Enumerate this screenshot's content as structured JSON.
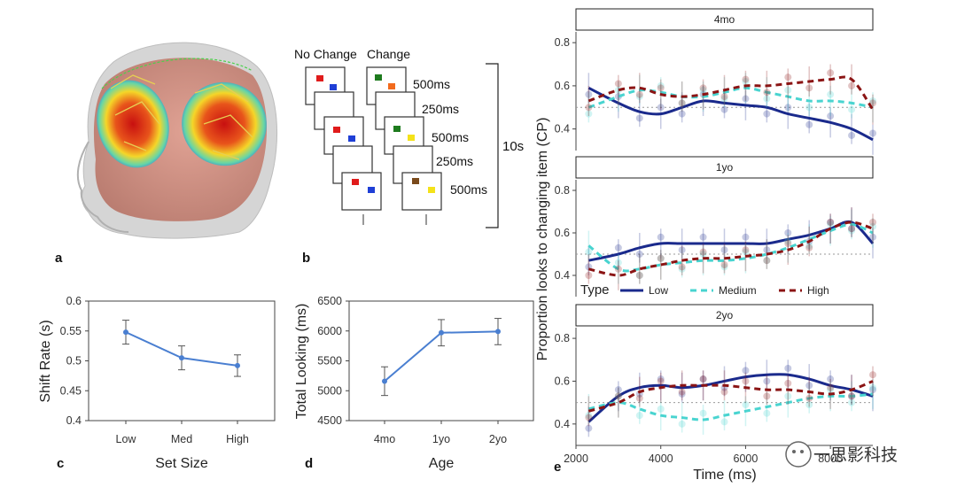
{
  "panels": {
    "a": {
      "label": "a"
    },
    "b": {
      "label": "b",
      "header_no_change": "No Change",
      "header_change": "Change",
      "timings": [
        "500ms",
        "250ms",
        "500ms",
        "250ms",
        "500ms"
      ],
      "total": "10s",
      "colors": {
        "red": "#e01b1b",
        "blue": "#1f3fd6",
        "green": "#1e7b1e",
        "orange": "#f26b1d",
        "yellow": "#f4e21a",
        "brown": "#7a4a1c"
      }
    },
    "c": {
      "label": "c"
    },
    "d": {
      "label": "d"
    },
    "e": {
      "label": "e"
    }
  },
  "chart_data": [
    {
      "id": "c",
      "type": "line",
      "categories": [
        "Low",
        "Med",
        "High"
      ],
      "values": [
        0.548,
        0.505,
        0.492
      ],
      "errors": [
        0.02,
        0.02,
        0.018
      ],
      "xlabel": "Set Size",
      "ylabel": "Shift Rate (s)",
      "ylim": [
        0.4,
        0.6
      ],
      "yticks": [
        "0.6",
        "0.55",
        "0.5",
        "0.45",
        "0.4"
      ],
      "color": "#4a7fd1"
    },
    {
      "id": "d",
      "type": "line",
      "categories": [
        "4mo",
        "1yo",
        "2yo"
      ],
      "values": [
        5160,
        5970,
        5990
      ],
      "errors": [
        240,
        220,
        220
      ],
      "xlabel": "Age",
      "ylabel": "Total Looking (ms)",
      "ylim": [
        4500,
        6500
      ],
      "yticks": [
        "6500",
        "6000",
        "5500",
        "5000",
        "4500"
      ],
      "color": "#4a7fd1"
    },
    {
      "id": "e",
      "type": "line",
      "ylabel": "Proportion looks to changing item (CP)",
      "xlabel": "Time (ms)",
      "xticks": [
        "2000",
        "4000",
        "6000",
        "8000"
      ],
      "xlim": [
        2000,
        9000
      ],
      "ylim": [
        0.3,
        0.85
      ],
      "yticks": [
        "0.8",
        "0.6",
        "0.4"
      ],
      "reference_line": 0.5,
      "legend_title": "Type",
      "legend": [
        {
          "name": "Low",
          "color": "#1a2a8c",
          "dash": "solid"
        },
        {
          "name": "Medium",
          "color": "#49d4d0",
          "dash": "dashed"
        },
        {
          "name": "High",
          "color": "#8b1414",
          "dash": "dashed"
        }
      ],
      "facets": [
        {
          "title": "4mo",
          "x": [
            2300,
            3000,
            3500,
            4000,
            4500,
            5000,
            5500,
            6000,
            6500,
            7000,
            7500,
            8000,
            8500,
            9000
          ],
          "series": [
            {
              "name": "Low",
              "values": [
                0.59,
                0.52,
                0.48,
                0.47,
                0.5,
                0.53,
                0.52,
                0.51,
                0.5,
                0.47,
                0.45,
                0.43,
                0.4,
                0.35
              ]
            },
            {
              "name": "Medium",
              "values": [
                0.5,
                0.55,
                0.58,
                0.57,
                0.55,
                0.55,
                0.57,
                0.59,
                0.57,
                0.55,
                0.53,
                0.53,
                0.52,
                0.5
              ]
            },
            {
              "name": "High",
              "values": [
                0.53,
                0.58,
                0.59,
                0.56,
                0.55,
                0.56,
                0.58,
                0.6,
                0.6,
                0.61,
                0.62,
                0.63,
                0.63,
                0.49
              ]
            }
          ]
        },
        {
          "title": "1yo",
          "x": [
            2300,
            3000,
            3500,
            4000,
            4500,
            5000,
            5500,
            6000,
            6500,
            7000,
            7500,
            8000,
            8500,
            9000
          ],
          "series": [
            {
              "name": "Low",
              "values": [
                0.47,
                0.5,
                0.53,
                0.55,
                0.55,
                0.55,
                0.55,
                0.55,
                0.55,
                0.57,
                0.59,
                0.62,
                0.65,
                0.55
              ]
            },
            {
              "name": "Medium",
              "values": [
                0.54,
                0.43,
                0.43,
                0.45,
                0.46,
                0.47,
                0.47,
                0.48,
                0.5,
                0.53,
                0.57,
                0.61,
                0.64,
                0.6
              ]
            },
            {
              "name": "High",
              "values": [
                0.43,
                0.4,
                0.43,
                0.45,
                0.47,
                0.48,
                0.48,
                0.49,
                0.5,
                0.52,
                0.56,
                0.62,
                0.65,
                0.62
              ]
            }
          ]
        },
        {
          "title": "2yo",
          "x": [
            2300,
            3000,
            3500,
            4000,
            4500,
            5000,
            5500,
            6000,
            6500,
            7000,
            7500,
            8000,
            8500,
            9000
          ],
          "series": [
            {
              "name": "Low",
              "values": [
                0.41,
                0.53,
                0.57,
                0.58,
                0.57,
                0.58,
                0.6,
                0.62,
                0.63,
                0.63,
                0.61,
                0.58,
                0.56,
                0.53
              ]
            },
            {
              "name": "Medium",
              "values": [
                0.47,
                0.5,
                0.47,
                0.44,
                0.43,
                0.42,
                0.44,
                0.46,
                0.48,
                0.5,
                0.52,
                0.53,
                0.53,
                0.54
              ]
            },
            {
              "name": "High",
              "values": [
                0.46,
                0.5,
                0.55,
                0.57,
                0.58,
                0.58,
                0.58,
                0.57,
                0.56,
                0.56,
                0.55,
                0.54,
                0.56,
                0.6
              ]
            }
          ]
        }
      ]
    }
  ],
  "watermark": "一思影科技"
}
